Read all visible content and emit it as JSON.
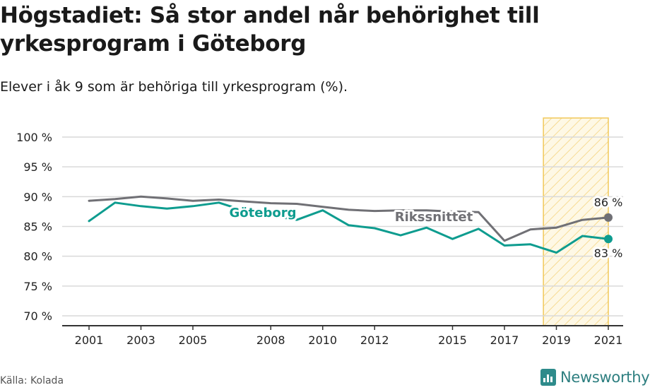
{
  "title": "Högstadiet: Så stor andel når behörighet till yrkesprogram i Göteborg",
  "subtitle": "Elever i åk 9 som är behöriga till yrkesprogram (%).",
  "source": "Källa: Kolada",
  "brand": "Newsworthy",
  "colors": {
    "goteborg": "#0e9c8f",
    "riksnittet": "#707075",
    "grid": "#d9d9d9",
    "axis": "#333333",
    "highlight_stroke": "#f0c85a",
    "highlight_fill": "#fdf3d4",
    "brand": "#2e8b8b"
  },
  "chart_data": {
    "type": "line",
    "x": [
      2001,
      2002,
      2003,
      2004,
      2005,
      2006,
      2007,
      2008,
      2009,
      2010,
      2011,
      2012,
      2013,
      2014,
      2015,
      2016,
      2017,
      2018,
      2019,
      2020,
      2021
    ],
    "x_ticks": [
      "2001",
      "2003",
      "2005",
      "2008",
      "2010",
      "2012",
      "2015",
      "2017",
      "2019",
      "2021"
    ],
    "y_ticks": [
      "100 %",
      "95 %",
      "90 %",
      "85 %",
      "80 %",
      "75 %",
      "70 %"
    ],
    "ylim": [
      70,
      100
    ],
    "grid": true,
    "highlight_range": [
      2019,
      2021
    ],
    "series": [
      {
        "name": "Göteborg",
        "values": [
          85.9,
          89.0,
          88.4,
          88.0,
          88.4,
          89.0,
          87.6,
          86.8,
          86.1,
          87.7,
          85.2,
          84.7,
          83.5,
          84.8,
          82.9,
          84.6,
          81.8,
          82.0,
          80.6,
          83.4,
          82.9
        ],
        "end_label": "83 %"
      },
      {
        "name": "Rikssnittet",
        "values": [
          89.3,
          89.6,
          90.0,
          89.7,
          89.3,
          89.5,
          89.2,
          88.9,
          88.8,
          88.3,
          87.8,
          87.6,
          87.7,
          87.7,
          87.5,
          87.4,
          82.6,
          84.5,
          84.8,
          86.1,
          86.5
        ],
        "end_label": "86 %"
      }
    ]
  }
}
